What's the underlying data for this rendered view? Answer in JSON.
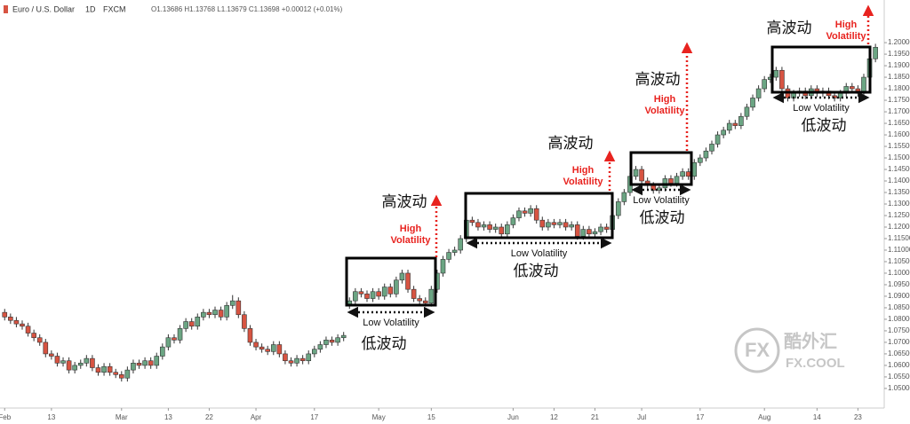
{
  "chart_data": {
    "type": "candlestick",
    "header": {
      "symbol": "Euro / U.S. Dollar",
      "interval": "1D",
      "source": "FXCM",
      "ohlc": "O1.13686 H1.13768 L1.13679 C1.13698 +0.00012 (+0.01%)"
    },
    "watermark": {
      "logo": "FX",
      "name": "酷外汇",
      "site": "FX.COOL"
    },
    "up_color": "#6ba583",
    "down_color": "#d75442",
    "grid": false,
    "xlim": [
      -0.8,
      150.5
    ],
    "xticks": [
      {
        "value": 0,
        "label": "Feb"
      },
      {
        "value": 8,
        "label": "13"
      },
      {
        "value": 20,
        "label": "Mar"
      },
      {
        "value": 28,
        "label": "13"
      },
      {
        "value": 35,
        "label": "22"
      },
      {
        "value": 43,
        "label": "Apr"
      },
      {
        "value": 53,
        "label": "17"
      },
      {
        "value": 64,
        "label": "May"
      },
      {
        "value": 73,
        "label": "15"
      },
      {
        "value": 87,
        "label": "Jun"
      },
      {
        "value": 94,
        "label": "12"
      },
      {
        "value": 101,
        "label": "21"
      },
      {
        "value": 109,
        "label": "Jul"
      },
      {
        "value": 119,
        "label": "17"
      },
      {
        "value": 130,
        "label": "Aug"
      },
      {
        "value": 139,
        "label": "14"
      },
      {
        "value": 146,
        "label": "23"
      }
    ],
    "ylim": [
      1.0415,
      1.2185
    ],
    "yticks": [
      {
        "value": 1.05,
        "label": "1.05000"
      },
      {
        "value": 1.055,
        "label": "1.05500"
      },
      {
        "value": 1.06,
        "label": "1.06000"
      },
      {
        "value": 1.065,
        "label": "1.06500"
      },
      {
        "value": 1.07,
        "label": "1.07000"
      },
      {
        "value": 1.075,
        "label": "1.07500"
      },
      {
        "value": 1.08,
        "label": "1.08000"
      },
      {
        "value": 1.085,
        "label": "1.08500"
      },
      {
        "value": 1.09,
        "label": "1.09000"
      },
      {
        "value": 1.095,
        "label": "1.09500"
      },
      {
        "value": 1.1,
        "label": "1.10000"
      },
      {
        "value": 1.105,
        "label": "1.10500"
      },
      {
        "value": 1.11,
        "label": "1.11000"
      },
      {
        "value": 1.115,
        "label": "1.11500"
      },
      {
        "value": 1.12,
        "label": "1.12000"
      },
      {
        "value": 1.125,
        "label": "1.12500"
      },
      {
        "value": 1.13,
        "label": "1.13000"
      },
      {
        "value": 1.135,
        "label": "1.13500"
      },
      {
        "value": 1.14,
        "label": "1.14000"
      },
      {
        "value": 1.145,
        "label": "1.14500"
      },
      {
        "value": 1.15,
        "label": "1.15000"
      },
      {
        "value": 1.155,
        "label": "1.15500"
      },
      {
        "value": 1.16,
        "label": "1.16000"
      },
      {
        "value": 1.165,
        "label": "1.16500"
      },
      {
        "value": 1.17,
        "label": "1.17000"
      },
      {
        "value": 1.175,
        "label": "1.17500"
      },
      {
        "value": 1.18,
        "label": "1.18000"
      },
      {
        "value": 1.185,
        "label": "1.18500"
      },
      {
        "value": 1.19,
        "label": "1.19000"
      },
      {
        "value": 1.195,
        "label": "1.19500"
      },
      {
        "value": 1.2,
        "label": "1.20000"
      }
    ],
    "open": [
      1.083,
      1.081,
      1.0795,
      1.078,
      1.077,
      1.074,
      1.072,
      1.07,
      1.065,
      1.064,
      1.061,
      1.062,
      1.058,
      1.06,
      1.061,
      1.063,
      1.059,
      1.057,
      1.0595,
      1.057,
      1.056,
      1.0545,
      1.058,
      1.061,
      1.06,
      1.062,
      1.06,
      1.064,
      1.068,
      1.072,
      1.071,
      1.076,
      1.079,
      1.077,
      1.081,
      1.083,
      1.082,
      1.084,
      1.081,
      1.086,
      1.088,
      1.082,
      1.076,
      1.07,
      1.068,
      1.067,
      1.066,
      1.069,
      1.065,
      1.062,
      1.061,
      1.063,
      1.062,
      1.065,
      1.067,
      1.069,
      1.071,
      1.07,
      1.072,
      1.086,
      1.088,
      1.092,
      1.091,
      1.089,
      1.092,
      1.09,
      1.094,
      1.091,
      1.097,
      1.1,
      1.093,
      1.089,
      1.088,
      1.087,
      1.093,
      1.1,
      1.106,
      1.109,
      1.11,
      1.115,
      1.123,
      1.122,
      1.12,
      1.121,
      1.119,
      1.12,
      1.117,
      1.121,
      1.124,
      1.127,
      1.126,
      1.128,
      1.123,
      1.12,
      1.122,
      1.121,
      1.122,
      1.12,
      1.121,
      1.116,
      1.119,
      1.117,
      1.118,
      1.12,
      1.119,
      1.125,
      1.131,
      1.135,
      1.142,
      1.145,
      1.14,
      1.138,
      1.136,
      1.137,
      1.141,
      1.139,
      1.142,
      1.144,
      1.142,
      1.148,
      1.15,
      1.153,
      1.156,
      1.16,
      1.162,
      1.165,
      1.164,
      1.168,
      1.172,
      1.176,
      1.18,
      1.184,
      1.185,
      1.188,
      1.18,
      1.176,
      1.178,
      1.179,
      1.177,
      1.18,
      1.178,
      1.179,
      1.177,
      1.176,
      1.178,
      1.181,
      1.18,
      1.178,
      1.185,
      1.193
    ],
    "high": [
      1.0845,
      1.0825,
      1.081,
      1.0795,
      1.0785,
      1.0755,
      1.0735,
      1.0715,
      1.0665,
      1.0655,
      1.0635,
      1.0635,
      1.0615,
      1.0625,
      1.0645,
      1.0645,
      1.0605,
      1.061,
      1.061,
      1.0585,
      1.0575,
      1.0595,
      1.0625,
      1.0625,
      1.0635,
      1.0635,
      1.0655,
      1.0695,
      1.0735,
      1.0735,
      1.0775,
      1.0805,
      1.0805,
      1.0825,
      1.0845,
      1.0845,
      1.0855,
      1.0855,
      1.0875,
      1.0905,
      1.0895,
      1.0835,
      1.0775,
      1.0715,
      1.0695,
      1.0685,
      1.0705,
      1.0705,
      1.0665,
      1.0635,
      1.0645,
      1.0645,
      1.0665,
      1.0685,
      1.0705,
      1.0725,
      1.0725,
      1.0735,
      1.0745,
      1.0895,
      1.0935,
      1.0935,
      1.0925,
      1.0935,
      1.0935,
      1.0955,
      1.0955,
      1.0985,
      1.1015,
      1.1015,
      1.0945,
      1.0905,
      1.0895,
      1.0945,
      1.1015,
      1.1075,
      1.1105,
      1.1115,
      1.1165,
      1.1245,
      1.1245,
      1.1235,
      1.1225,
      1.1225,
      1.1215,
      1.1215,
      1.1225,
      1.1255,
      1.1285,
      1.1285,
      1.1295,
      1.1295,
      1.1245,
      1.1235,
      1.1235,
      1.1235,
      1.1235,
      1.1225,
      1.1225,
      1.1205,
      1.1205,
      1.1195,
      1.1215,
      1.1215,
      1.1265,
      1.1325,
      1.1365,
      1.1435,
      1.1465,
      1.1465,
      1.1415,
      1.1395,
      1.1385,
      1.1425,
      1.1425,
      1.1435,
      1.1455,
      1.1455,
      1.1495,
      1.1515,
      1.1545,
      1.1575,
      1.1615,
      1.1635,
      1.1665,
      1.1665,
      1.1695,
      1.1735,
      1.1775,
      1.1815,
      1.1855,
      1.1865,
      1.1895,
      1.1895,
      1.1815,
      1.1795,
      1.1805,
      1.1805,
      1.1815,
      1.1815,
      1.1805,
      1.1805,
      1.1785,
      1.1795,
      1.1825,
      1.1825,
      1.1815,
      1.1865,
      1.1945,
      1.1995
    ],
    "low": [
      1.0795,
      1.078,
      1.0765,
      1.0755,
      1.0725,
      1.0705,
      1.0685,
      1.0635,
      1.0625,
      1.0595,
      1.0595,
      1.0565,
      1.0565,
      1.0585,
      1.0595,
      1.0575,
      1.0555,
      1.0555,
      1.0555,
      1.0545,
      1.053,
      1.053,
      1.0565,
      1.0585,
      1.0585,
      1.0585,
      1.0585,
      1.0625,
      1.0665,
      1.0695,
      1.0695,
      1.0745,
      1.0755,
      1.0755,
      1.0795,
      1.0805,
      1.0805,
      1.0795,
      1.0795,
      1.0845,
      1.0805,
      1.0745,
      1.0685,
      1.0665,
      1.0655,
      1.0645,
      1.0645,
      1.0635,
      1.0605,
      1.0595,
      1.0595,
      1.0605,
      1.0605,
      1.0635,
      1.0655,
      1.0675,
      1.0685,
      1.0685,
      1.0705,
      1.0845,
      1.0865,
      1.0895,
      1.0875,
      1.0875,
      1.0885,
      1.0885,
      1.0895,
      1.0895,
      1.0955,
      1.0915,
      1.0875,
      1.0865,
      1.0855,
      1.0855,
      1.0915,
      1.0985,
      1.1045,
      1.1075,
      1.1085,
      1.1135,
      1.1205,
      1.1185,
      1.1185,
      1.1175,
      1.1175,
      1.1155,
      1.1155,
      1.1195,
      1.1225,
      1.1245,
      1.1245,
      1.1215,
      1.1185,
      1.1185,
      1.1195,
      1.1195,
      1.1185,
      1.1185,
      1.1145,
      1.1145,
      1.1155,
      1.1155,
      1.1165,
      1.1175,
      1.1175,
      1.1235,
      1.1295,
      1.1335,
      1.1405,
      1.1385,
      1.1365,
      1.1345,
      1.1345,
      1.1355,
      1.1375,
      1.1375,
      1.1405,
      1.1405,
      1.1405,
      1.1465,
      1.1485,
      1.1515,
      1.1545,
      1.1585,
      1.1605,
      1.1625,
      1.1625,
      1.1665,
      1.1705,
      1.1745,
      1.1785,
      1.1825,
      1.1835,
      1.1785,
      1.1745,
      1.1745,
      1.1765,
      1.1755,
      1.1755,
      1.1765,
      1.1765,
      1.1755,
      1.1745,
      1.1745,
      1.1765,
      1.1785,
      1.1765,
      1.1765,
      1.1835,
      1.1915
    ],
    "close": [
      1.081,
      1.0795,
      1.078,
      1.077,
      1.074,
      1.072,
      1.07,
      1.065,
      1.064,
      1.061,
      1.062,
      1.058,
      1.06,
      1.061,
      1.063,
      1.059,
      1.057,
      1.0595,
      1.057,
      1.056,
      1.0545,
      1.058,
      1.061,
      1.06,
      1.062,
      1.06,
      1.064,
      1.068,
      1.072,
      1.071,
      1.076,
      1.079,
      1.077,
      1.081,
      1.083,
      1.082,
      1.084,
      1.081,
      1.086,
      1.088,
      1.082,
      1.076,
      1.07,
      1.068,
      1.067,
      1.066,
      1.069,
      1.065,
      1.062,
      1.061,
      1.063,
      1.062,
      1.065,
      1.067,
      1.069,
      1.071,
      1.07,
      1.072,
      1.073,
      1.088,
      1.092,
      1.091,
      1.089,
      1.092,
      1.09,
      1.094,
      1.091,
      1.097,
      1.1,
      1.093,
      1.089,
      1.088,
      1.087,
      1.093,
      1.1,
      1.106,
      1.109,
      1.11,
      1.115,
      1.123,
      1.122,
      1.12,
      1.121,
      1.119,
      1.12,
      1.117,
      1.121,
      1.124,
      1.127,
      1.126,
      1.128,
      1.123,
      1.12,
      1.122,
      1.121,
      1.122,
      1.12,
      1.121,
      1.116,
      1.119,
      1.117,
      1.118,
      1.12,
      1.119,
      1.125,
      1.131,
      1.135,
      1.142,
      1.145,
      1.14,
      1.138,
      1.136,
      1.137,
      1.141,
      1.139,
      1.142,
      1.144,
      1.142,
      1.148,
      1.15,
      1.153,
      1.156,
      1.16,
      1.162,
      1.165,
      1.164,
      1.168,
      1.172,
      1.176,
      1.18,
      1.184,
      1.185,
      1.188,
      1.18,
      1.176,
      1.178,
      1.179,
      1.177,
      1.18,
      1.178,
      1.179,
      1.177,
      1.176,
      1.178,
      1.181,
      1.18,
      1.178,
      1.185,
      1.193,
      1.198
    ],
    "annotations": [
      {
        "high_cn": "高波动",
        "high_label": [
          "High",
          "Volatility"
        ],
        "low_label": "Low Volatility",
        "low_cn": "低波动"
      },
      {
        "high_cn": "高波动",
        "high_label": [
          "High",
          "Volatility"
        ],
        "low_label": "Low Volatility",
        "low_cn": "低波动"
      },
      {
        "high_cn": "高波动",
        "high_label": [
          "High",
          "Volatility"
        ],
        "low_label": "Low Volatility",
        "low_cn": "低波动"
      },
      {
        "high_cn": "高波动",
        "high_label": [
          "High",
          "Volatility"
        ],
        "low_label": "Low Volatility",
        "low_cn": "低波动"
      }
    ]
  }
}
